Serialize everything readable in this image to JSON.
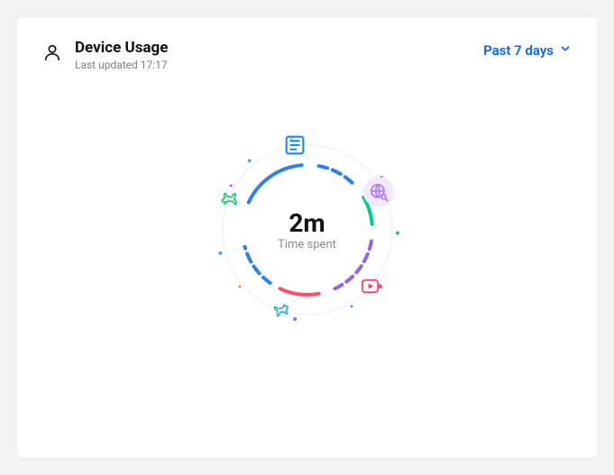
{
  "card": {
    "title": "Device Usage",
    "subtitle": "Last updated 17:17"
  },
  "range_picker": {
    "label": "Past 7 days",
    "color": "#0b63ff"
  },
  "ring": {
    "center_value": "2m",
    "center_label": "Time spent",
    "bg": "#ffffff",
    "outer_faint_color": "#eef2f7",
    "segments": [
      {
        "color": "#2f80ed",
        "start": -65,
        "sweep": 60,
        "width": 4,
        "radius": 72
      },
      {
        "color": "#2f80ed",
        "start": 10,
        "sweep": 35,
        "width": 4,
        "radius": 72,
        "dash": "10 6"
      },
      {
        "color": "#00cf8a",
        "start": 60,
        "sweep": 25,
        "width": 4,
        "radius": 72
      },
      {
        "color": "#9063f5",
        "start": 100,
        "sweep": 55,
        "width": 4,
        "radius": 72,
        "dash": "9 6"
      },
      {
        "color": "#ff4d6d",
        "start": 170,
        "sweep": 35,
        "width": 4,
        "radius": 72
      },
      {
        "color": "#2f80ed",
        "start": 215,
        "sweep": 40,
        "width": 4,
        "radius": 72,
        "dash": "10 6"
      }
    ],
    "dots": [
      {
        "angle": -40,
        "r": 100,
        "size": 4,
        "color": "#5aa9ff"
      },
      {
        "angle": -10,
        "r": 102,
        "size": 3,
        "color": "#b7b7ff"
      },
      {
        "angle": 55,
        "r": 100,
        "size": 5,
        "color": "#8a4bff"
      },
      {
        "angle": 92,
        "r": 100,
        "size": 4,
        "color": "#00cf8a"
      },
      {
        "angle": 128,
        "r": 102,
        "size": 5,
        "color": "#ff4d6d"
      },
      {
        "angle": 150,
        "r": 98,
        "size": 3,
        "color": "#3aa0ff"
      },
      {
        "angle": 188,
        "r": 100,
        "size": 4,
        "color": "#6b7cff"
      },
      {
        "angle": 230,
        "r": 98,
        "size": 3,
        "color": "#ff8a3d"
      },
      {
        "angle": 255,
        "r": 100,
        "size": 4,
        "color": "#4da3ff"
      },
      {
        "angle": 300,
        "r": 98,
        "size": 3,
        "color": "#b04dff"
      }
    ]
  },
  "orbit_icons": {
    "plane_green": {
      "angle": -68,
      "r": 92,
      "size": 28,
      "color": "#1ecb6b"
    },
    "news_blue": {
      "angle": -8,
      "r": 95,
      "size": 34,
      "color": "#1a86ff"
    },
    "globe_purple": {
      "angle": 62,
      "r": 90,
      "size": 34,
      "color": "#b37dff",
      "bg": "#f2e9ff"
    },
    "play_red": {
      "angle": 132,
      "r": 94,
      "size": 28,
      "color": "#ff3b5c"
    },
    "plane_teal": {
      "angle": 198,
      "r": 94,
      "size": 26,
      "color": "#23b6c4"
    }
  }
}
